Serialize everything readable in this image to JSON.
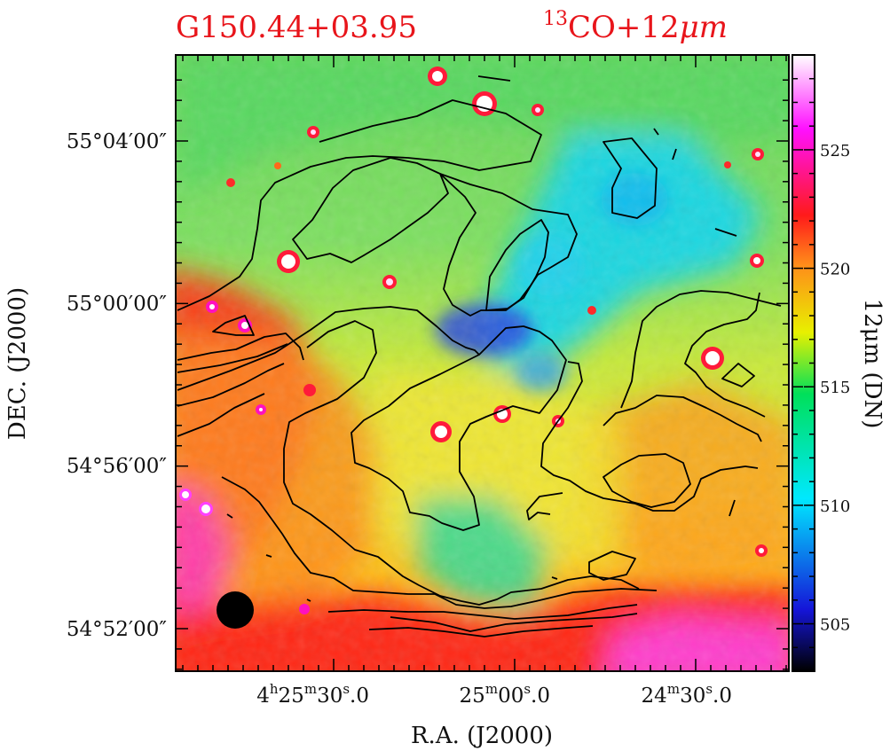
{
  "chart_data": {
    "type": "heatmap",
    "title_left": "G150.44+03.95",
    "title_right_sup": "13",
    "title_right": "CO+12",
    "title_right_unit": "μm",
    "xlabel": "R.A.  (J2000)",
    "ylabel": "DEC.  (J2000)",
    "colorbar_label": "12μm (DN)",
    "x_ticks": [
      {
        "h": "4",
        "hs": "h",
        "m": "25",
        "ms": "m",
        "s": "30",
        "ss": "s",
        "frac": ".0"
      },
      {
        "h": "",
        "hs": "",
        "m": "25",
        "ms": "m",
        "s": "00",
        "ss": "s",
        "frac": ".0"
      },
      {
        "h": "",
        "hs": "",
        "m": "24",
        "ms": "m",
        "s": "30",
        "ss": "s",
        "frac": ".0"
      }
    ],
    "y_ticks": [
      "55°04′00″",
      "55°00′00″",
      "54°56′00″",
      "54°52′00″"
    ],
    "colorbar_ticks": [
      "505",
      "510",
      "515",
      "520",
      "525"
    ],
    "colorbar_range": [
      503,
      529
    ],
    "colormap": [
      "#000000",
      "#1515d8",
      "#00e8ff",
      "#00e05a",
      "#e8f000",
      "#ff8c1a",
      "#ff1a1a",
      "#ff10ff",
      "#ffffff"
    ],
    "regions": [
      {
        "name": "top-green",
        "level": 515.5
      },
      {
        "name": "right-cyan-filament",
        "level": 510
      },
      {
        "name": "central-blue-minimum",
        "level": 506.5
      },
      {
        "name": "left-red-ridge",
        "level": 521
      },
      {
        "name": "bottom-red-band",
        "level": 522
      },
      {
        "name": "bottom-right-magenta",
        "level": 525
      }
    ],
    "beam": "filled black circle (lower-left)",
    "contour_color": "#000000",
    "point_sources": "white-cored compact sources with red halos"
  }
}
